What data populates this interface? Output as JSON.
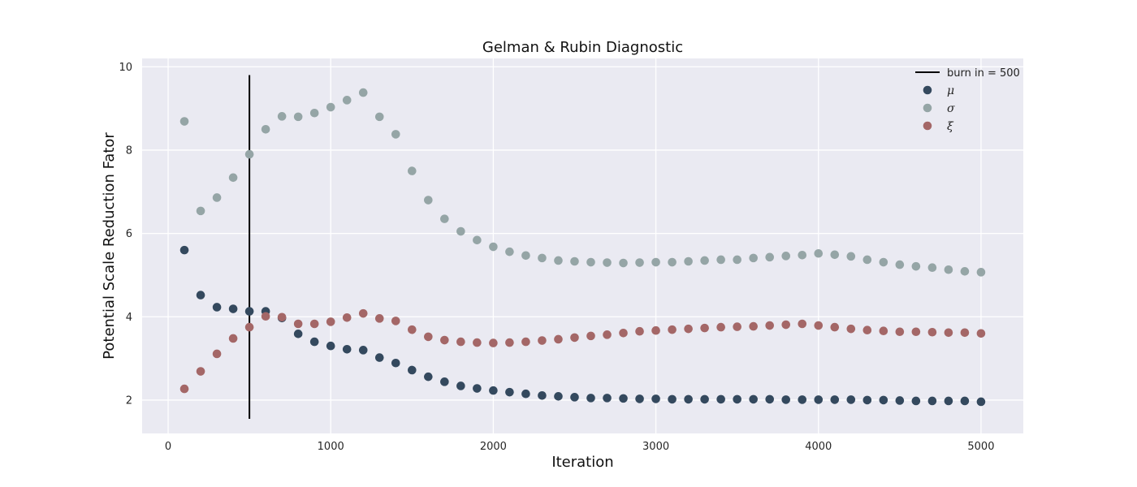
{
  "chart_data": {
    "type": "scatter",
    "title": "Gelman & Rubin Diagnostic",
    "xlabel": "Iteration",
    "ylabel": "Potential Scale Reduction Fator",
    "xlim": [
      -160,
      5260
    ],
    "ylim": [
      1.2,
      10.2
    ],
    "xticks": [
      0,
      1000,
      2000,
      3000,
      4000,
      5000
    ],
    "yticks": [
      2,
      4,
      6,
      8,
      10
    ],
    "grid": true,
    "legend_position": "top-right",
    "burn_in": {
      "label": "burn in = 500",
      "x": 500,
      "y_range": [
        1.55,
        9.8
      ],
      "color": "#000000"
    },
    "x": [
      100,
      200,
      300,
      400,
      500,
      600,
      700,
      800,
      900,
      1000,
      1100,
      1200,
      1300,
      1400,
      1500,
      1600,
      1700,
      1800,
      1900,
      2000,
      2100,
      2200,
      2300,
      2400,
      2500,
      2600,
      2700,
      2800,
      2900,
      3000,
      3100,
      3200,
      3300,
      3400,
      3500,
      3600,
      3700,
      3800,
      3900,
      4000,
      4100,
      4200,
      4300,
      4400,
      4500,
      4600,
      4700,
      4800,
      4900,
      5000
    ],
    "series": [
      {
        "name": "μ",
        "color": "#34495e",
        "values": [
          5.6,
          4.52,
          4.23,
          4.19,
          4.13,
          4.13,
          3.97,
          3.59,
          3.4,
          3.3,
          3.22,
          3.2,
          3.02,
          2.89,
          2.72,
          2.56,
          2.44,
          2.34,
          2.28,
          2.23,
          2.19,
          2.15,
          2.11,
          2.09,
          2.07,
          2.05,
          2.05,
          2.04,
          2.03,
          2.03,
          2.02,
          2.02,
          2.02,
          2.02,
          2.02,
          2.02,
          2.02,
          2.01,
          2.01,
          2.01,
          2.01,
          2.01,
          2.0,
          2.0,
          1.99,
          1.98,
          1.98,
          1.98,
          1.98,
          1.96
        ]
      },
      {
        "name": "σ",
        "color": "#95a5a6",
        "values": [
          8.69,
          6.54,
          6.86,
          7.34,
          7.9,
          8.5,
          8.81,
          8.8,
          8.89,
          9.03,
          9.2,
          9.38,
          8.8,
          8.38,
          7.5,
          6.8,
          6.35,
          6.05,
          5.84,
          5.68,
          5.56,
          5.47,
          5.41,
          5.35,
          5.33,
          5.31,
          5.3,
          5.29,
          5.3,
          5.31,
          5.31,
          5.33,
          5.35,
          5.37,
          5.37,
          5.41,
          5.43,
          5.46,
          5.48,
          5.52,
          5.49,
          5.45,
          5.37,
          5.31,
          5.25,
          5.21,
          5.18,
          5.13,
          5.09,
          5.07
        ]
      },
      {
        "name": "ξ",
        "color": "#a46767",
        "values": [
          2.27,
          2.69,
          3.11,
          3.48,
          3.75,
          4.01,
          3.99,
          3.83,
          3.83,
          3.88,
          3.98,
          4.08,
          3.96,
          3.9,
          3.69,
          3.52,
          3.44,
          3.4,
          3.38,
          3.37,
          3.38,
          3.4,
          3.43,
          3.46,
          3.5,
          3.54,
          3.57,
          3.61,
          3.65,
          3.67,
          3.69,
          3.71,
          3.73,
          3.75,
          3.76,
          3.77,
          3.79,
          3.81,
          3.83,
          3.79,
          3.75,
          3.71,
          3.68,
          3.66,
          3.64,
          3.64,
          3.63,
          3.62,
          3.62,
          3.6
        ]
      }
    ],
    "style": {
      "background": "#eaeaf2",
      "grid_color": "#ffffff"
    }
  }
}
